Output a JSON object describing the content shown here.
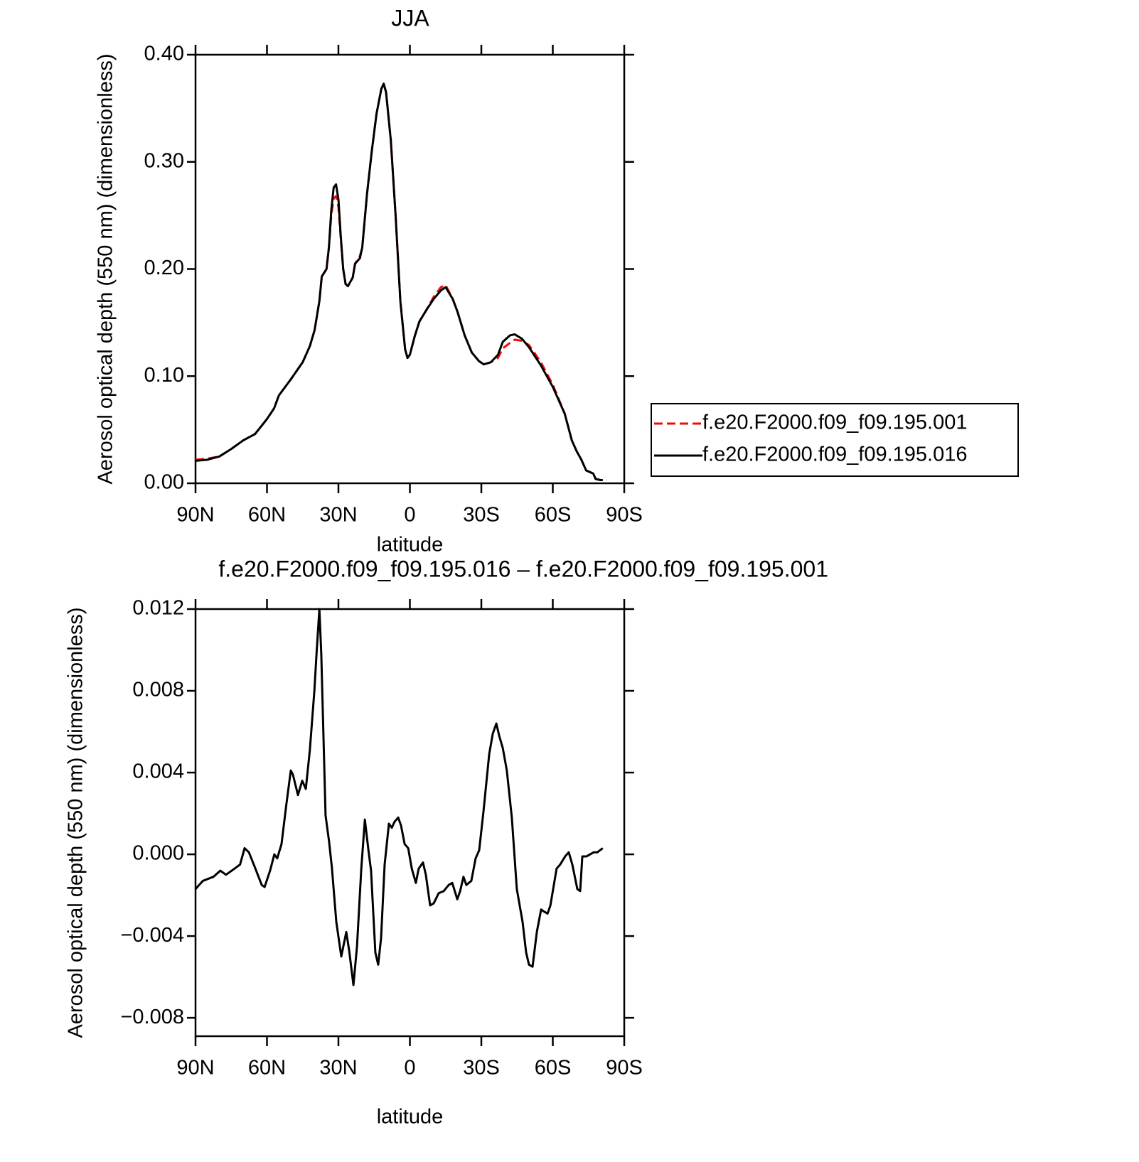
{
  "chart_data": [
    {
      "type": "line",
      "title": "JJA",
      "xlabel": "latitude",
      "ylabel": "Aerosol optical depth (550 nm) (dimensionless)",
      "xlim": [
        90,
        -90
      ],
      "xticks": [
        {
          "value": 90,
          "label": "90N"
        },
        {
          "value": 60,
          "label": "60N"
        },
        {
          "value": 30,
          "label": "30N"
        },
        0,
        {
          "value": -30,
          "label": "30S"
        },
        {
          "value": -60,
          "label": "60S"
        },
        {
          "value": -90,
          "label": "90S"
        }
      ],
      "ylim": [
        0,
        0.4
      ],
      "yticks": [
        {
          "value": 0,
          "label": "0.00"
        },
        {
          "value": 0.1,
          "label": "0.10"
        },
        {
          "value": 0.2,
          "label": "0.20"
        },
        {
          "value": 0.3,
          "label": "0.30"
        },
        {
          "value": 0.4,
          "label": "0.40"
        }
      ],
      "legend": "outside-right",
      "x": [
        90,
        85,
        80,
        75,
        70,
        65,
        60,
        57,
        55,
        50,
        45,
        42,
        40,
        38,
        37,
        35,
        34,
        33,
        32,
        31,
        30,
        29,
        28,
        27,
        26,
        24,
        23,
        21,
        20,
        18,
        16,
        14,
        12,
        11,
        10,
        8,
        6,
        4,
        2,
        1,
        0,
        -2,
        -4,
        -7,
        -10,
        -13,
        -15,
        -18,
        -20,
        -23,
        -26,
        -29,
        -31,
        -34,
        -37,
        -39,
        -42,
        -44,
        -47,
        -50,
        -55,
        -60,
        -65,
        -68,
        -70,
        -72,
        -74,
        -77,
        -78,
        -80,
        -81
      ],
      "series": [
        {
          "name": "f.e20.F2000.f09_f09.195.001",
          "color": "#e8100f",
          "dash": "dashed",
          "values": [
            0.022,
            0.023,
            0.025,
            0.032,
            0.04,
            0.046,
            0.06,
            0.07,
            0.082,
            0.097,
            0.113,
            0.128,
            0.143,
            0.17,
            0.193,
            0.2,
            0.22,
            0.25,
            0.266,
            0.268,
            0.258,
            0.228,
            0.2,
            0.186,
            0.184,
            0.192,
            0.205,
            0.212,
            0.22,
            0.27,
            0.31,
            0.345,
            0.368,
            0.373,
            0.365,
            0.32,
            0.25,
            0.17,
            0.125,
            0.117,
            0.12,
            0.137,
            0.151,
            0.162,
            0.174,
            0.183,
            0.185,
            0.172,
            0.16,
            0.138,
            0.122,
            0.114,
            0.111,
            0.113,
            0.117,
            0.126,
            0.131,
            0.134,
            0.133,
            0.129,
            0.113,
            0.092,
            0.065,
            0.04,
            0.03,
            0.022,
            0.012,
            0.009,
            0.004,
            0.003,
            0.003
          ]
        },
        {
          "name": "f.e20.F2000.f09_f09.195.016",
          "color": "#000000",
          "dash": "solid",
          "values": [
            0.021,
            0.022,
            0.025,
            0.032,
            0.04,
            0.046,
            0.06,
            0.07,
            0.082,
            0.097,
            0.113,
            0.128,
            0.143,
            0.17,
            0.193,
            0.2,
            0.22,
            0.255,
            0.276,
            0.279,
            0.265,
            0.23,
            0.2,
            0.186,
            0.184,
            0.192,
            0.205,
            0.21,
            0.22,
            0.27,
            0.31,
            0.345,
            0.368,
            0.373,
            0.365,
            0.32,
            0.25,
            0.17,
            0.125,
            0.117,
            0.12,
            0.137,
            0.151,
            0.162,
            0.172,
            0.18,
            0.183,
            0.172,
            0.16,
            0.138,
            0.122,
            0.114,
            0.111,
            0.113,
            0.12,
            0.132,
            0.138,
            0.139,
            0.135,
            0.127,
            0.11,
            0.09,
            0.065,
            0.04,
            0.03,
            0.022,
            0.012,
            0.009,
            0.004,
            0.003,
            0.003
          ]
        }
      ]
    },
    {
      "type": "line",
      "title": "f.e20.F2000.f09_f09.195.016 – f.e20.F2000.f09_f09.195.001",
      "xlabel": "latitude",
      "ylabel": "Aerosol optical depth (550 nm) (dimensionless)",
      "xlim": [
        90,
        -90
      ],
      "xticks": [
        {
          "value": 90,
          "label": "90N"
        },
        {
          "value": 60,
          "label": "60N"
        },
        {
          "value": 30,
          "label": "30N"
        },
        0,
        {
          "value": -30,
          "label": "30S"
        },
        {
          "value": -60,
          "label": "60S"
        },
        {
          "value": -90,
          "label": "90S"
        }
      ],
      "ylim": [
        -0.0089,
        0.012
      ],
      "yticks": [
        {
          "value": -0.008,
          "label": "−0.008"
        },
        {
          "value": -0.004,
          "label": "−0.004"
        },
        {
          "value": 0,
          "label": "0.000"
        },
        {
          "value": 0.004,
          "label": "0.004"
        },
        {
          "value": 0.008,
          "label": "0.008"
        },
        {
          "value": 0.012,
          "label": "0.012"
        }
      ],
      "x": [
        90,
        88.5,
        86.9,
        82.5,
        79.6,
        77.2,
        73.6,
        71.3,
        69.4,
        67.6,
        65.2,
        62.2,
        61,
        58.7,
        56.9,
        55.7,
        53.9,
        51.8,
        50,
        49.1,
        47,
        45.2,
        43.7,
        42,
        40.1,
        39.2,
        38,
        37.2,
        35.4,
        33.9,
        32.7,
        30.9,
        28.8,
        26.7,
        25.5,
        23.7,
        22.2,
        20.4,
        18.9,
        17.4,
        16.3,
        14.5,
        13.3,
        12.1,
        10.6,
        8.8,
        7.6,
        6.4,
        4.9,
        3.7,
        2.2,
        0.7,
        -0.8,
        -2.5,
        -3.7,
        -5.5,
        -6.7,
        -8.5,
        -10,
        -12.1,
        -14.2,
        -16.3,
        -17.8,
        -19.9,
        -21.1,
        -22.5,
        -23.7,
        -25.8,
        -27.6,
        -29.1,
        -30.9,
        -33.3,
        -34.8,
        -36.3,
        -37.5,
        -39,
        -40.7,
        -42.8,
        -44.9,
        -47.3,
        -48.8,
        -50,
        -51.5,
        -53.3,
        -55.1,
        -56.3,
        -57.8,
        -59,
        -61.6,
        -63.1,
        -65.2,
        -66.7,
        -68.2,
        -70.3,
        -71.5,
        -72.4,
        -74.2,
        -77.2,
        -78.7,
        -81
      ],
      "series": [
        {
          "color": "#000000",
          "dash": "solid",
          "values": [
            -0.0017,
            -0.0015,
            -0.0013,
            -0.0011,
            -0.0008,
            -0.001,
            -0.0007,
            -0.0005,
            0.0003,
            0.0001,
            -0.0006,
            -0.0015,
            -0.0016,
            -0.0008,
            0,
            -0.0002,
            0.0005,
            0.0025,
            0.0041,
            0.0039,
            0.0029,
            0.0036,
            0.0032,
            0.0051,
            0.008,
            0.0098,
            0.012,
            0.0098,
            0.0019,
            0.0006,
            -0.0007,
            -0.0033,
            -0.005,
            -0.0038,
            -0.0047,
            -0.0064,
            -0.0045,
            -0.0007,
            0.0017,
            0.0002,
            -0.0008,
            -0.0048,
            -0.0054,
            -0.0041,
            -0.0005,
            0.0015,
            0.0013,
            0.0016,
            0.0018,
            0.0014,
            0.0005,
            0.0003,
            -0.0007,
            -0.0014,
            -0.0007,
            -0.0004,
            -0.001,
            -0.0025,
            -0.0024,
            -0.0019,
            -0.0018,
            -0.0015,
            -0.0014,
            -0.0022,
            -0.0018,
            -0.0011,
            -0.0015,
            -0.0013,
            -0.0002,
            0.0002,
            0.0021,
            0.0049,
            0.0059,
            0.0064,
            0.0058,
            0.0052,
            0.0041,
            0.0018,
            -0.0017,
            -0.0033,
            -0.0048,
            -0.0054,
            -0.0055,
            -0.0038,
            -0.0027,
            -0.0028,
            -0.0029,
            -0.0025,
            -0.0007,
            -0.0005,
            -0.0001,
            0.0001,
            -0.0005,
            -0.0017,
            -0.0018,
            -0.0001,
            -0.0001,
            0.0001,
            0.0001,
            0.0003
          ]
        }
      ]
    }
  ]
}
